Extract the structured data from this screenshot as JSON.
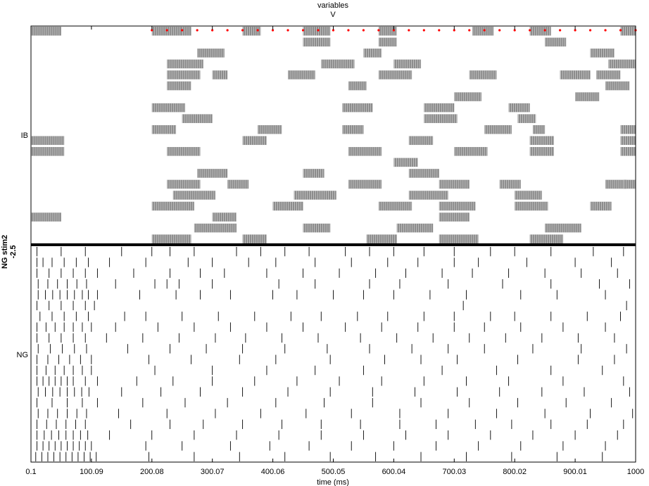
{
  "chart_data": {
    "type": "raster",
    "title_lines": [
      "variables",
      "V"
    ],
    "xlabel": "time (ms)",
    "xlim": [
      0.1,
      1000
    ],
    "xticks": [
      0.1,
      100.09,
      200.08,
      300.07,
      400.06,
      500.05,
      600.04,
      700.03,
      800.02,
      900.01,
      1000
    ],
    "xtick_labels": [
      "0.1",
      "100.09",
      "200.08",
      "300.07",
      "400.06",
      "500.05",
      "600.04",
      "700.03",
      "800.02",
      "900.01",
      "1000"
    ],
    "side_label_lines": [
      "NG stim2",
      "-2.5"
    ],
    "populations": [
      {
        "name": "IB",
        "cell_count": 20,
        "burst_color": "#8c8c8c",
        "bursts": [
          [
            [
              0,
              50
            ],
            [
              200,
              250
            ],
            [
              250,
              265
            ],
            [
              350,
              380
            ],
            [
              450,
              495
            ],
            [
              575,
              605
            ],
            [
              730,
              765
            ],
            [
              825,
              860
            ],
            [
              975,
              1000
            ]
          ],
          [
            [
              450,
              495
            ],
            [
              575,
              605
            ],
            [
              850,
              885
            ]
          ],
          [
            [
              275,
              320
            ],
            [
              550,
              580
            ],
            [
              925,
              965
            ]
          ],
          [
            [
              225,
              285
            ],
            [
              480,
              535
            ],
            [
              600,
              645
            ],
            [
              955,
              1000
            ]
          ],
          [
            [
              225,
              280
            ],
            [
              300,
              325
            ],
            [
              425,
              470
            ],
            [
              575,
              630
            ],
            [
              725,
              770
            ],
            [
              875,
              925
            ],
            [
              935,
              975
            ]
          ],
          [
            [
              225,
              265
            ],
            [
              525,
              555
            ],
            [
              950,
              990
            ]
          ],
          [
            [
              700,
              745
            ],
            [
              900,
              940
            ]
          ],
          [
            [
              200,
              255
            ],
            [
              515,
              565
            ],
            [
              650,
              700
            ],
            [
              790,
              825
            ]
          ],
          [
            [
              250,
              300
            ],
            [
              650,
              705
            ],
            [
              805,
              835
            ]
          ],
          [
            [
              200,
              240
            ],
            [
              375,
              415
            ],
            [
              515,
              550
            ],
            [
              750,
              795
            ],
            [
              830,
              850
            ],
            [
              975,
              1000
            ]
          ],
          [
            [
              0,
              55
            ],
            [
              350,
              390
            ],
            [
              625,
              665
            ],
            [
              825,
              865
            ],
            [
              975,
              1000
            ]
          ],
          [
            [
              0,
              55
            ],
            [
              225,
              280
            ],
            [
              525,
              580
            ],
            [
              700,
              755
            ],
            [
              825,
              865
            ],
            [
              975,
              1000
            ]
          ],
          [
            [
              600,
              640
            ]
          ],
          [
            [
              275,
              325
            ],
            [
              450,
              485
            ],
            [
              625,
              675
            ]
          ],
          [
            [
              225,
              280
            ],
            [
              325,
              360
            ],
            [
              525,
              580
            ],
            [
              675,
              725
            ],
            [
              775,
              810
            ],
            [
              950,
              985
            ],
            [
              980,
              1000
            ]
          ],
          [
            [
              235,
              305
            ],
            [
              435,
              505
            ],
            [
              625,
              690
            ],
            [
              800,
              845
            ]
          ],
          [
            [
              200,
              270
            ],
            [
              400,
              450
            ],
            [
              575,
              630
            ],
            [
              675,
              735
            ],
            [
              800,
              855
            ],
            [
              925,
              960
            ]
          ],
          [
            [
              0,
              50
            ],
            [
              300,
              340
            ],
            [
              675,
              725
            ]
          ],
          [
            [
              270,
              340
            ],
            [
              450,
              495
            ],
            [
              605,
              665
            ],
            [
              850,
              910
            ]
          ],
          [
            [
              200,
              265
            ],
            [
              350,
              390
            ],
            [
              555,
              605
            ],
            [
              675,
              740
            ],
            [
              825,
              880
            ]
          ]
        ],
        "marker_row": 0,
        "marker_color": "#ff0000",
        "marker_times": [
          200,
          225,
          250,
          275,
          300,
          325,
          350,
          375,
          400,
          425,
          450,
          475,
          500,
          525,
          550,
          575,
          600,
          625,
          650,
          675,
          700,
          725,
          750,
          775,
          800,
          825,
          850,
          875,
          900,
          925,
          950,
          975,
          1000
        ]
      },
      {
        "name": "NG",
        "cell_count": 20,
        "spike_color": "#000000",
        "spikes": [
          [
            10,
            50,
            90,
            150,
            200,
            230,
            270,
            340,
            380,
            420,
            460,
            520,
            560,
            600,
            650,
            700,
            760,
            800,
            860,
            930,
            980
          ],
          [
            10,
            20,
            35,
            55,
            75,
            95,
            130,
            190,
            260,
            300,
            360,
            405,
            470,
            530,
            590,
            640,
            700,
            740,
            820,
            900,
            960
          ],
          [
            10,
            30,
            50,
            70,
            90,
            110,
            170,
            230,
            280,
            320,
            390,
            450,
            510,
            570,
            620,
            680,
            730,
            790,
            850,
            910,
            970
          ],
          [
            12,
            28,
            44,
            60,
            76,
            92,
            140,
            205,
            225,
            245,
            300,
            410,
            470,
            560,
            610,
            690,
            780,
            860,
            940,
            990
          ],
          [
            12,
            24,
            36,
            48,
            60,
            72,
            85,
            95,
            110,
            180,
            240,
            280,
            330,
            400,
            440,
            500,
            550,
            600,
            660,
            720,
            810,
            870,
            950
          ],
          [
            10,
            30,
            50,
            70,
            90,
            105,
            715,
            985
          ],
          [
            15,
            35,
            55,
            75,
            95,
            155,
            190,
            250,
            310,
            370,
            430,
            480,
            540,
            590,
            650,
            700,
            760,
            800,
            860,
            920,
            975
          ],
          [
            10,
            25,
            40,
            55,
            70,
            85,
            100,
            140,
            210,
            270,
            330,
            390,
            450,
            520,
            580,
            640,
            700,
            750,
            810,
            880,
            950
          ],
          [
            10,
            30,
            50,
            70,
            90,
            125,
            185,
            245,
            305,
            355,
            415,
            475,
            545,
            605,
            665,
            725,
            785,
            845,
            905,
            965
          ],
          [
            12,
            32,
            52,
            72,
            92,
            160,
            230,
            290,
            350,
            420,
            490,
            560,
            630,
            690,
            750,
            830,
            910,
            985
          ],
          [
            10,
            28,
            46,
            64,
            82,
            100,
            195,
            265,
            345,
            405,
            495,
            585,
            645,
            705,
            805,
            905,
            965
          ],
          [
            10,
            25,
            40,
            55,
            70,
            85,
            100,
            205,
            300,
            390,
            470,
            550,
            680,
            770,
            860,
            945
          ],
          [
            10,
            20,
            30,
            40,
            50,
            60,
            70,
            90,
            110,
            175,
            235,
            300,
            370,
            440,
            510,
            580,
            650,
            720,
            790,
            880,
            980
          ],
          [
            12,
            24,
            36,
            48,
            60,
            72,
            84,
            96,
            150,
            215,
            280,
            350,
            425,
            495,
            565,
            635,
            705,
            775,
            845,
            915,
            990
          ],
          [
            10,
            35,
            60,
            85,
            110,
            185,
            255,
            325,
            405,
            485,
            565,
            645,
            725,
            805,
            885,
            960
          ],
          [
            12,
            28,
            44,
            60,
            76,
            92,
            145,
            225,
            305,
            380,
            455,
            530,
            610,
            690,
            770,
            850,
            925,
            995
          ],
          [
            10,
            26,
            42,
            58,
            74,
            90,
            165,
            230,
            285,
            350,
            415,
            480,
            545,
            610,
            670,
            735,
            795,
            860,
            920,
            980
          ],
          [
            10,
            22,
            34,
            46,
            58,
            70,
            82,
            94,
            130,
            200,
            270,
            340,
            410,
            480,
            550,
            620,
            690,
            760,
            830,
            900,
            970
          ],
          [
            10,
            20,
            30,
            40,
            50,
            60,
            70,
            80,
            90,
            100,
            190,
            250,
            330,
            395,
            460,
            530,
            600,
            670,
            740,
            810,
            880,
            950
          ],
          [
            8,
            18,
            28,
            38,
            48,
            58,
            68,
            78,
            88,
            98,
            108,
            195,
            270,
            345,
            420,
            495,
            570,
            645,
            720,
            795,
            870,
            945
          ]
        ]
      }
    ]
  }
}
